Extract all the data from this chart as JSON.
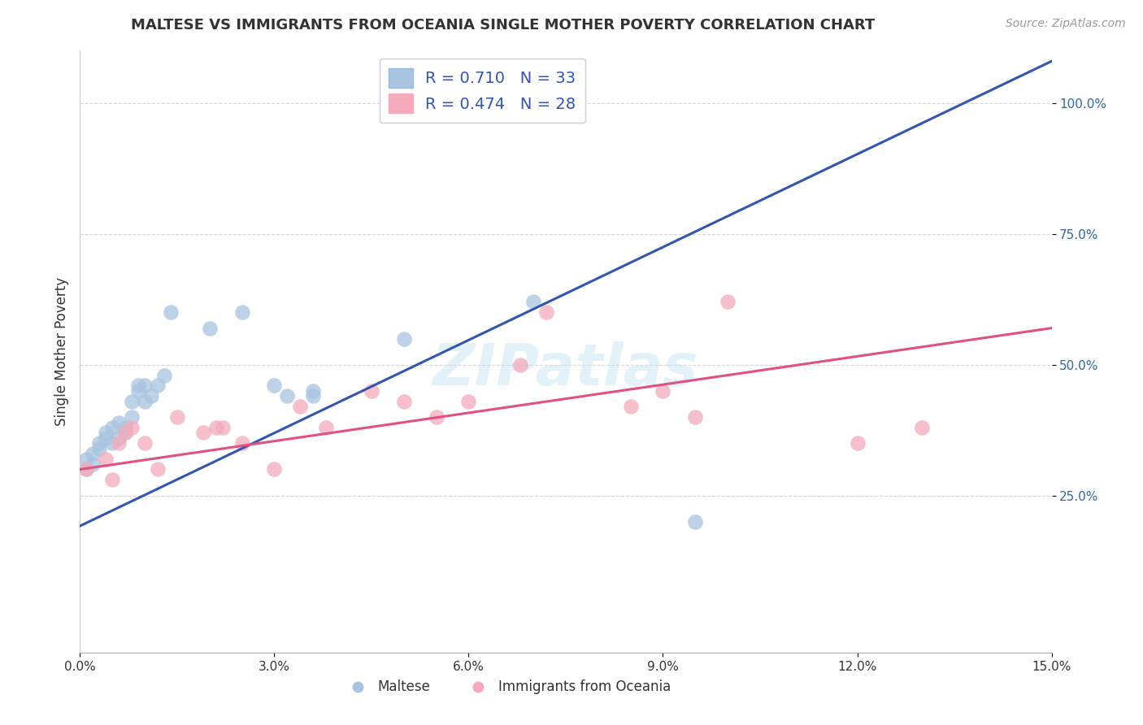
{
  "title": "MALTESE VS IMMIGRANTS FROM OCEANIA SINGLE MOTHER POVERTY CORRELATION CHART",
  "source_text": "Source: ZipAtlas.com",
  "ylabel": "Single Mother Poverty",
  "xlim": [
    0.0,
    0.15
  ],
  "ylim": [
    -0.05,
    1.1
  ],
  "xtick_labels": [
    "0.0%",
    "3.0%",
    "6.0%",
    "9.0%",
    "12.0%",
    "15.0%"
  ],
  "xtick_values": [
    0.0,
    0.03,
    0.06,
    0.09,
    0.12,
    0.15
  ],
  "ytick_labels": [
    "25.0%",
    "50.0%",
    "75.0%",
    "100.0%"
  ],
  "ytick_values": [
    0.25,
    0.5,
    0.75,
    1.0
  ],
  "blue_color": "#A8C4E0",
  "pink_color": "#F4AABB",
  "blue_line_color": "#3355AA",
  "pink_line_color": "#E05080",
  "blue_r": 0.71,
  "blue_n": 33,
  "pink_r": 0.474,
  "pink_n": 28,
  "legend_label_blue": "Maltese",
  "legend_label_pink": "Immigrants from Oceania",
  "blue_scatter_x": [
    0.001,
    0.001,
    0.002,
    0.002,
    0.003,
    0.003,
    0.004,
    0.004,
    0.005,
    0.005,
    0.006,
    0.006,
    0.007,
    0.007,
    0.008,
    0.008,
    0.009,
    0.009,
    0.01,
    0.01,
    0.011,
    0.012,
    0.013,
    0.014,
    0.02,
    0.025,
    0.03,
    0.032,
    0.036,
    0.036,
    0.05,
    0.07,
    0.095
  ],
  "blue_scatter_y": [
    0.3,
    0.32,
    0.31,
    0.33,
    0.34,
    0.35,
    0.36,
    0.37,
    0.35,
    0.38,
    0.36,
    0.39,
    0.37,
    0.38,
    0.4,
    0.43,
    0.45,
    0.46,
    0.43,
    0.46,
    0.44,
    0.46,
    0.48,
    0.6,
    0.57,
    0.6,
    0.46,
    0.44,
    0.44,
    0.45,
    0.55,
    0.62,
    0.2
  ],
  "pink_scatter_x": [
    0.001,
    0.004,
    0.005,
    0.006,
    0.007,
    0.008,
    0.01,
    0.012,
    0.015,
    0.019,
    0.021,
    0.022,
    0.025,
    0.03,
    0.034,
    0.038,
    0.045,
    0.05,
    0.055,
    0.06,
    0.068,
    0.072,
    0.085,
    0.09,
    0.095,
    0.1,
    0.12,
    0.13
  ],
  "pink_scatter_y": [
    0.3,
    0.32,
    0.28,
    0.35,
    0.37,
    0.38,
    0.35,
    0.3,
    0.4,
    0.37,
    0.38,
    0.38,
    0.35,
    0.3,
    0.42,
    0.38,
    0.45,
    0.43,
    0.4,
    0.43,
    0.5,
    0.6,
    0.42,
    0.45,
    0.4,
    0.62,
    0.35,
    0.38
  ],
  "blue_line_x": [
    -0.002,
    0.15
  ],
  "blue_line_y": [
    0.18,
    1.08
  ],
  "pink_line_x": [
    0.0,
    0.15
  ],
  "pink_line_y": [
    0.3,
    0.57
  ],
  "watermark_text": "ZIPatlas",
  "background_color": "#FFFFFF",
  "grid_color": "#CCCCCC",
  "ytick_color": "#336699",
  "text_color": "#333333",
  "legend_text_color": "#3355AA"
}
